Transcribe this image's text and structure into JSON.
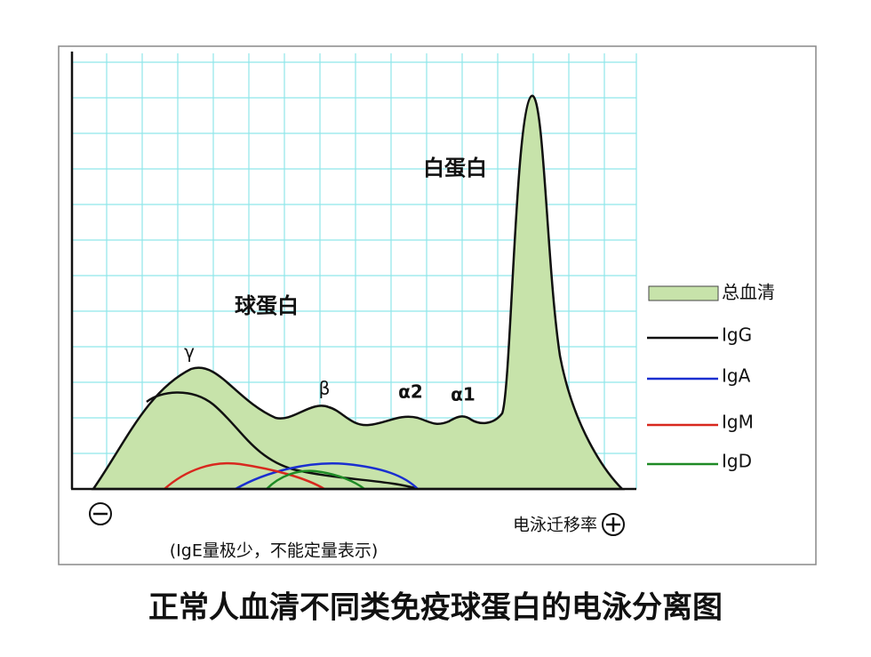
{
  "diagram": {
    "title": "正常人血清不同类免疫球蛋白的电泳分离图",
    "region_labels": [
      "白蛋白",
      "球蛋白"
    ],
    "peak_labels": [
      "γ",
      "β",
      "α2",
      "α1"
    ],
    "axis_label": "电泳迁移率",
    "note": "(IgE量极少，不能定量表示)",
    "legend": [
      "总血清",
      "IgG",
      "IgA",
      "IgM",
      "IgD"
    ]
  }
}
